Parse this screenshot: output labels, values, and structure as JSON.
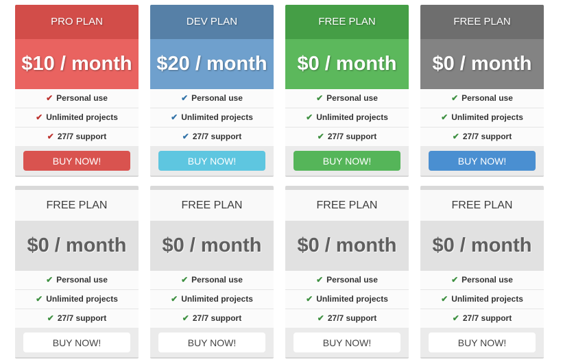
{
  "icons": {
    "check": "✔"
  },
  "rows": [
    {
      "cards": [
        {
          "plan": "PRO PLAN",
          "price": "$10 / month",
          "features": [
            "Personal use",
            "Unlimited projects",
            "27/7 support"
          ],
          "button_label": "BUY NOW!",
          "colors": {
            "header_bg": "#d24d49",
            "price_bg": "#e96360",
            "check": "#bd332f",
            "button_bg": "#d9534f",
            "button_text": "#ffffff"
          }
        },
        {
          "plan": "DEV PLAN",
          "price": "$20 / month",
          "features": [
            "Personal use",
            "Unlimited projects",
            "27/7 support"
          ],
          "button_label": "BUY NOW!",
          "colors": {
            "header_bg": "#5680a7",
            "price_bg": "#6fa0cd",
            "check": "#3373a8",
            "button_bg": "#5ec6e0",
            "button_text": "#ffffff"
          }
        },
        {
          "plan": "FREE PLAN",
          "price": "$0 / month",
          "features": [
            "Personal use",
            "Unlimited projects",
            "27/7 support"
          ],
          "button_label": "BUY NOW!",
          "colors": {
            "header_bg": "#459e46",
            "price_bg": "#5cb85c",
            "check": "#3e9041",
            "button_bg": "#55b559",
            "button_text": "#ffffff"
          }
        },
        {
          "plan": "FREE PLAN",
          "price": "$0 / month",
          "features": [
            "Personal use",
            "Unlimited projects",
            "27/7 support"
          ],
          "button_label": "BUY NOW!",
          "colors": {
            "header_bg": "#6e6e6e",
            "price_bg": "#838383",
            "check": "#3e9041",
            "button_bg": "#4a8fd1",
            "button_text": "#ffffff"
          }
        }
      ]
    },
    {
      "cards": [
        {
          "plan": "FREE PLAN",
          "price": "$0 / month",
          "features": [
            "Personal use",
            "Unlimited projects",
            "27/7 support"
          ],
          "button_label": "BUY NOW!",
          "colors": {
            "top_strip": "#d9d9d9",
            "header_bg": "#f9f9f9",
            "header_text": "#3c3c3c",
            "price_bg": "#e1e1e1",
            "price_text": "#5f5f5f",
            "check": "#3e9041",
            "button_bg": "#ffffff",
            "button_text": "#444444"
          }
        },
        {
          "plan": "FREE PLAN",
          "price": "$0 / month",
          "features": [
            "Personal use",
            "Unlimited projects",
            "27/7 support"
          ],
          "button_label": "BUY NOW!",
          "colors": {
            "top_strip": "#d9d9d9",
            "header_bg": "#f9f9f9",
            "header_text": "#3c3c3c",
            "price_bg": "#e1e1e1",
            "price_text": "#5f5f5f",
            "check": "#3e9041",
            "button_bg": "#ffffff",
            "button_text": "#444444"
          }
        },
        {
          "plan": "FREE PLAN",
          "price": "$0 / month",
          "features": [
            "Personal use",
            "Unlimited projects",
            "27/7 support"
          ],
          "button_label": "BUY NOW!",
          "colors": {
            "top_strip": "#d9d9d9",
            "header_bg": "#f9f9f9",
            "header_text": "#3c3c3c",
            "price_bg": "#e1e1e1",
            "price_text": "#5f5f5f",
            "check": "#3e9041",
            "button_bg": "#ffffff",
            "button_text": "#444444"
          }
        },
        {
          "plan": "FREE PLAN",
          "price": "$0 / month",
          "features": [
            "Personal use",
            "Unlimited projects",
            "27/7 support"
          ],
          "button_label": "BUY NOW!",
          "colors": {
            "top_strip": "#d9d9d9",
            "header_bg": "#f9f9f9",
            "header_text": "#3c3c3c",
            "price_bg": "#e1e1e1",
            "price_text": "#5f5f5f",
            "check": "#3e9041",
            "button_bg": "#ffffff",
            "button_text": "#444444"
          }
        }
      ]
    }
  ]
}
